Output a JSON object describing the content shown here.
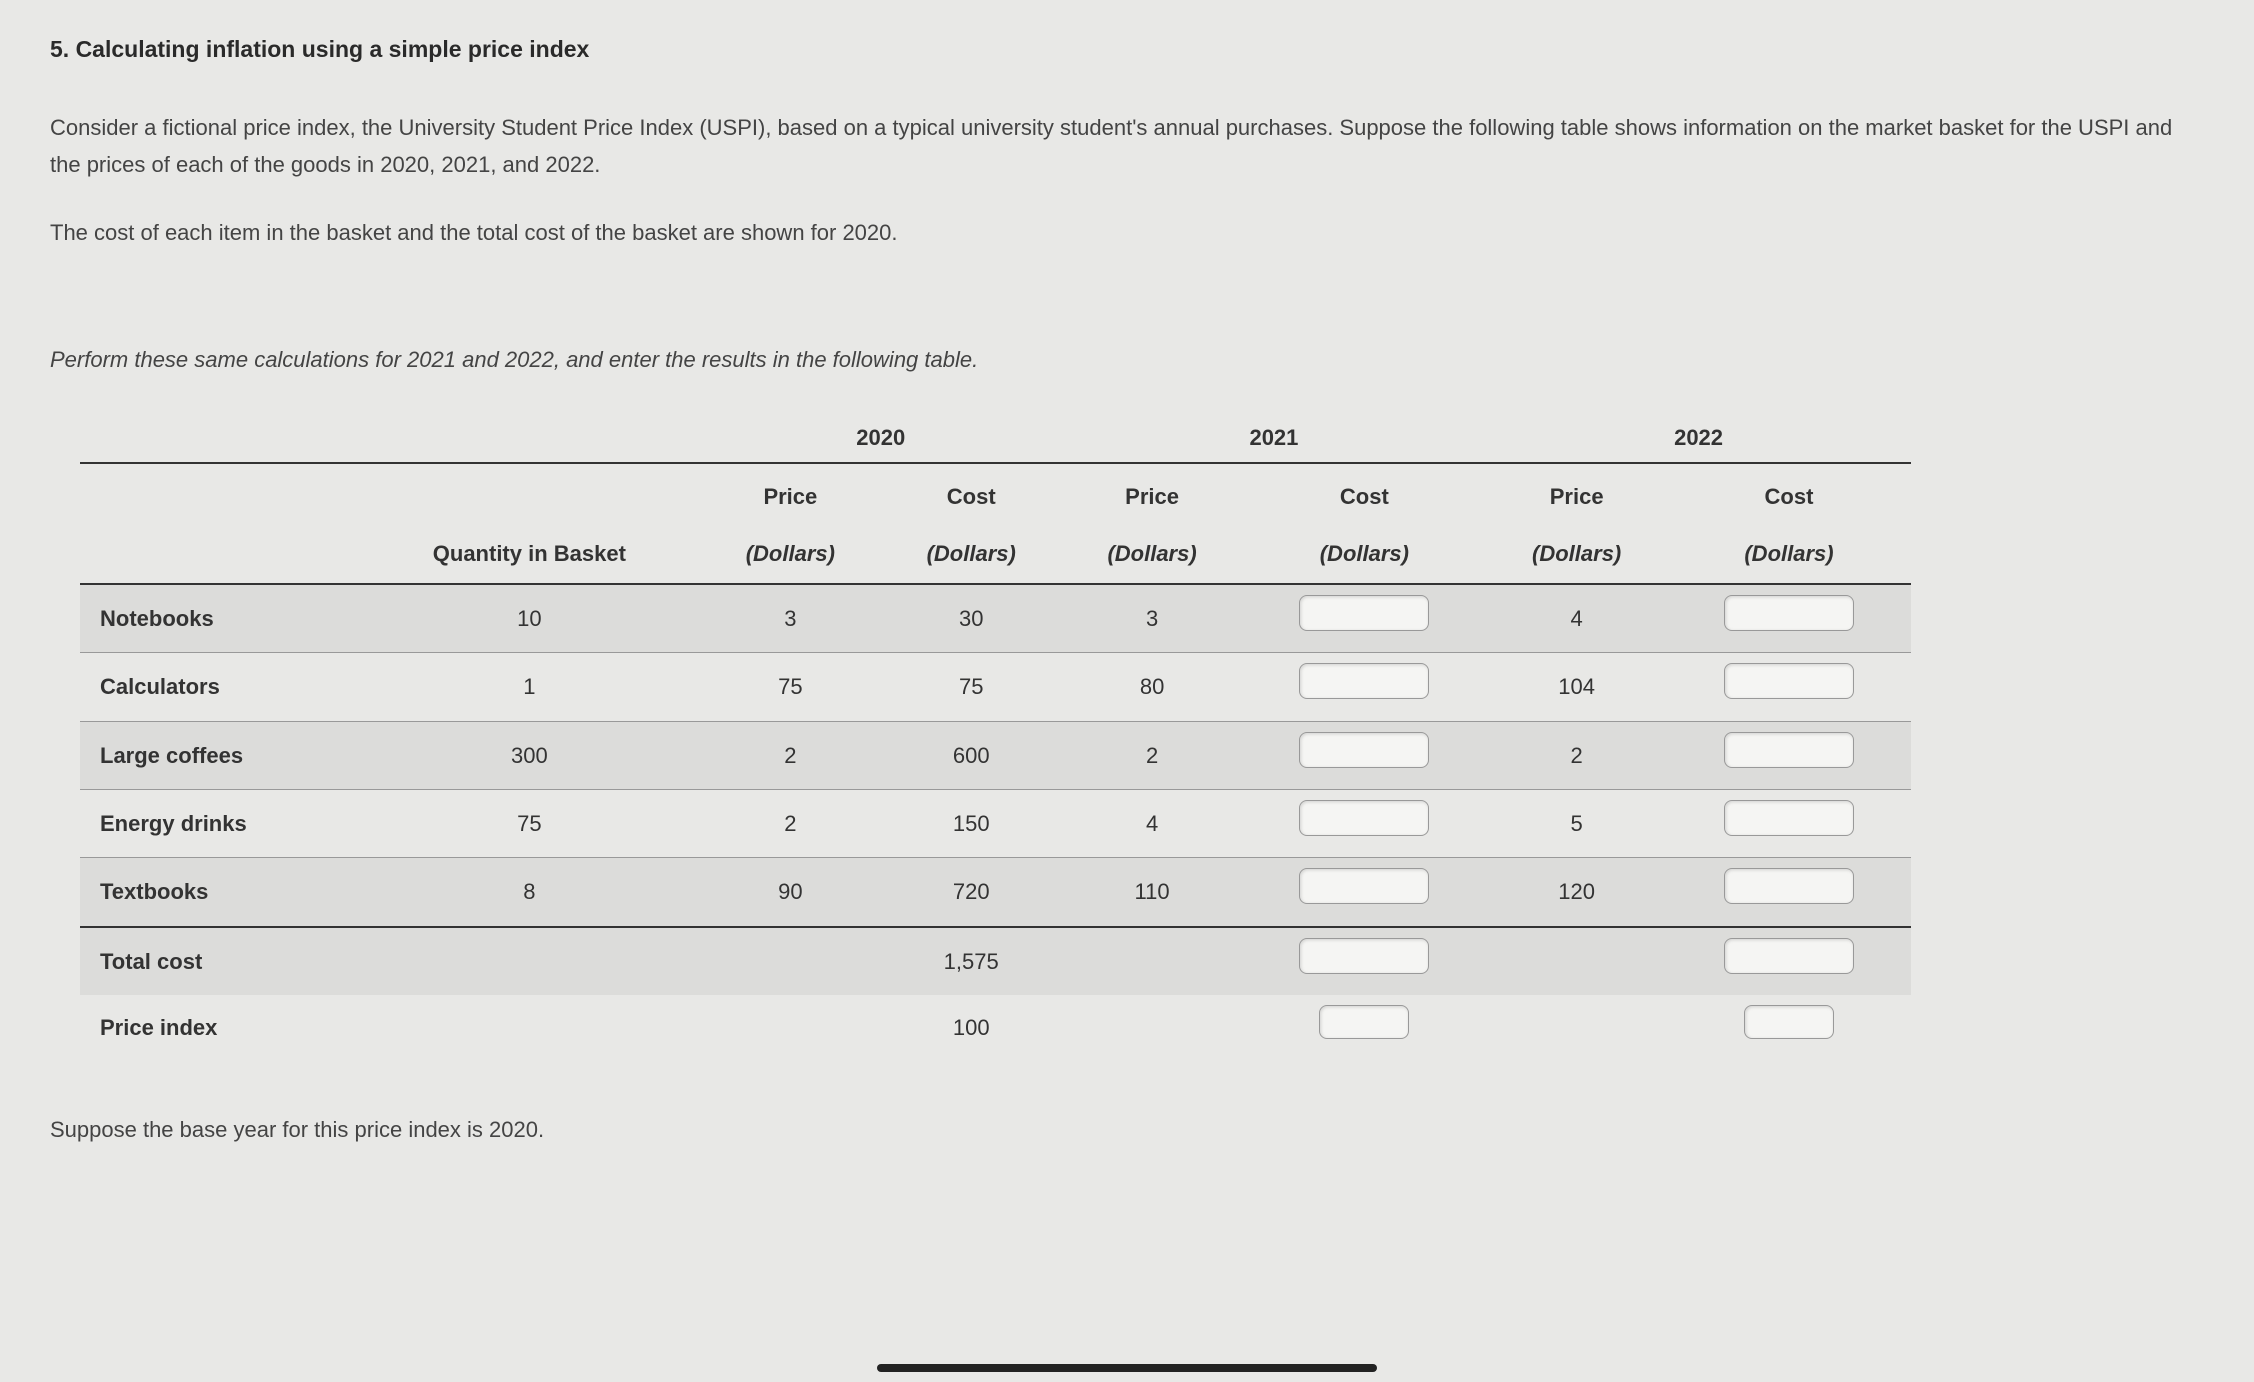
{
  "heading": "5. Calculating inflation using a simple price index",
  "paragraph1": "Consider a fictional price index, the University Student Price Index (USPI), based on a typical university student's annual purchases. Suppose the following table shows information on the market basket for the USPI and the prices of each of the goods in 2020, 2021, and 2022.",
  "paragraph2": "The cost of each item in the basket and the total cost of the basket are shown for 2020.",
  "instruction": "Perform these same calculations for 2021 and 2022, and enter the results in the following table.",
  "table": {
    "years": [
      "2020",
      "2021",
      "2022"
    ],
    "col_qty": "Quantity in Basket",
    "col_price": "Price",
    "col_cost": "Cost",
    "col_price_sub": "(Dollars)",
    "col_cost_sub": "(Dollars)",
    "rows": [
      {
        "label": "Notebooks",
        "qty": "10",
        "p2020": "3",
        "c2020": "30",
        "p2021": "3",
        "p2022": "4"
      },
      {
        "label": "Calculators",
        "qty": "1",
        "p2020": "75",
        "c2020": "75",
        "p2021": "80",
        "p2022": "104"
      },
      {
        "label": "Large coffees",
        "qty": "300",
        "p2020": "2",
        "c2020": "600",
        "p2021": "2",
        "p2022": "2"
      },
      {
        "label": "Energy drinks",
        "qty": "75",
        "p2020": "2",
        "c2020": "150",
        "p2021": "4",
        "p2022": "5"
      },
      {
        "label": "Textbooks",
        "qty": "8",
        "p2020": "90",
        "c2020": "720",
        "p2021": "110",
        "p2022": "120"
      }
    ],
    "total_label": "Total cost",
    "total_2020": "1,575",
    "index_label": "Price index",
    "index_2020": "100"
  },
  "footer": "Suppose the base year for this price index is 2020.",
  "styling": {
    "background": "#e8e8e6",
    "text_color": "#333",
    "shaded_row": "#dcdcda",
    "border_color": "#333",
    "input_bg": "#f5f5f3",
    "input_border": "#999",
    "font_family": "Verdana",
    "base_fontsize": 22
  }
}
